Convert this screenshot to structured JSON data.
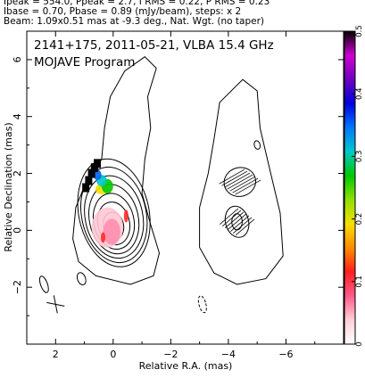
{
  "header": {
    "line1": "Ipeak = 554.0, Ppeak = 2.7, I RMS = 0.22, P RMS = 0.23",
    "line2": "Ibase = 0.70, Pbase = 0.89 (mJy/beam), steps: x 2",
    "line3": "Beam: 1.09x0.51 mas at -9.3 deg., Nat. Wgt. (no taper)"
  },
  "chart_data": {
    "type": "contour",
    "title": "2141+175, 2011-05-21, VLBA 15.4 GHz",
    "subtitle": "MOJAVE Program",
    "xlabel": "Relative R.A. (mas)",
    "ylabel": "Relative Declination (mas)",
    "xlim": [
      3.0,
      -8.0
    ],
    "ylim": [
      -4.0,
      7.0
    ],
    "xticks": [
      2,
      0,
      -2,
      -4,
      -6
    ],
    "yticks": [
      -2,
      0,
      2,
      4,
      6
    ],
    "colorbar": {
      "ticks": [
        0,
        0.1,
        0.2,
        0.3,
        0.4,
        0.5
      ],
      "range": [
        0,
        0.5
      ],
      "colors": [
        "#ffffff",
        "#ffd0d8",
        "#ff5a8a",
        "#ff1f1f",
        "#ff8c00",
        "#f5e000",
        "#8ee000",
        "#00c800",
        "#00c8c8",
        "#0078ff",
        "#0000e0",
        "#7000c0",
        "#d000d0",
        "#000000"
      ]
    },
    "left_panel": {
      "center": [
        0.0,
        0.0
      ],
      "contour_radii": [
        [
          0.35,
          0.48
        ],
        [
          0.55,
          0.75
        ],
        [
          0.7,
          0.98
        ],
        [
          0.85,
          1.22
        ],
        [
          1.0,
          1.45
        ],
        [
          1.12,
          1.68
        ],
        [
          1.22,
          1.9
        ]
      ],
      "outer_contour": [
        [
          0.6,
          -1.6
        ],
        [
          -0.6,
          -1.9
        ],
        [
          -1.4,
          -1.6
        ],
        [
          -1.6,
          -0.8
        ],
        [
          -1.3,
          0.2
        ],
        [
          -1.0,
          1.3
        ],
        [
          -1.1,
          2.5
        ],
        [
          -1.3,
          3.6
        ],
        [
          -1.2,
          4.7
        ],
        [
          -1.5,
          5.7
        ],
        [
          -1.1,
          6.1
        ],
        [
          -0.4,
          5.6
        ],
        [
          0.1,
          4.7
        ],
        [
          0.3,
          3.6
        ],
        [
          0.4,
          2.5
        ],
        [
          0.9,
          1.8
        ],
        [
          1.3,
          0.8
        ],
        [
          1.4,
          -0.3
        ],
        [
          1.2,
          -1.1
        ]
      ],
      "faint_components": [
        {
          "x": 2.4,
          "y": -1.9,
          "rx": 0.12,
          "ry": 0.3
        },
        {
          "x": 1.1,
          "y": -1.7,
          "rx": 0.14,
          "ry": 0.22
        }
      ]
    },
    "right_panel": {
      "outer_contour": [
        [
          -3.7,
          4.5
        ],
        [
          -4.5,
          5.3
        ],
        [
          -5.0,
          4.9
        ],
        [
          -5.1,
          3.6
        ],
        [
          -5.4,
          2.3
        ],
        [
          -5.8,
          0.6
        ],
        [
          -5.9,
          -0.9
        ],
        [
          -5.3,
          -1.7
        ],
        [
          -4.3,
          -1.9
        ],
        [
          -3.5,
          -1.5
        ],
        [
          -3.0,
          -0.6
        ],
        [
          -3.0,
          0.8
        ],
        [
          -3.3,
          2.0
        ],
        [
          -3.5,
          3.2
        ]
      ],
      "components": [
        {
          "x": -4.4,
          "y": 1.7,
          "rx": 0.55,
          "ry": 0.5
        },
        {
          "x": -4.3,
          "y": 0.3,
          "rx": 0.4,
          "ry": 0.55
        },
        {
          "x": -5.0,
          "y": 3.0,
          "rx": 0.1,
          "ry": 0.15
        },
        {
          "x": -3.1,
          "y": -2.6,
          "rx": 0.12,
          "ry": 0.3
        }
      ]
    }
  }
}
